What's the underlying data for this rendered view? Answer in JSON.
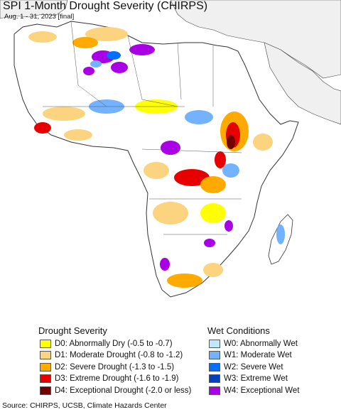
{
  "title": "SPI 1-Month Drought Severity (CHIRPS)",
  "subtitle": "Aug. 1 - 31, 2023 [final]",
  "legend": {
    "drought_title": "Drought Severity",
    "wet_title": "Wet Conditions",
    "drought": [
      {
        "label": "D0: Abnormally Dry (-0.5 to -0.7)",
        "color": "#ffff00"
      },
      {
        "label": "D1: Moderate Drought (-0.8 to -1.2)",
        "color": "#fcd37f"
      },
      {
        "label": "D2: Severe Drought (-1.3 to -1.5)",
        "color": "#ffaa00"
      },
      {
        "label": "D3: Extreme Drought (-1.6 to -1.9)",
        "color": "#e60000"
      },
      {
        "label": "D4: Exceptional Drought (-2.0 or less)",
        "color": "#730000"
      }
    ],
    "wet": [
      {
        "label": "W0: Abnormally Wet",
        "color": "#bee8ff"
      },
      {
        "label": "W1: Moderate Wet",
        "color": "#73b2ff"
      },
      {
        "label": "W2: Severe Wet",
        "color": "#0070ff"
      },
      {
        "label": "W3: Extreme Wet",
        "color": "#0041c2"
      },
      {
        "label": "W4: Exceptional Wet",
        "color": "#a900e6"
      }
    ]
  },
  "source": "Source: CHIRPS, UCSB, Climate Hazards Center",
  "colors": {
    "ocean": "#ffffff",
    "land_outside": "#f0f0f0",
    "land_normal": "#ffffff"
  }
}
